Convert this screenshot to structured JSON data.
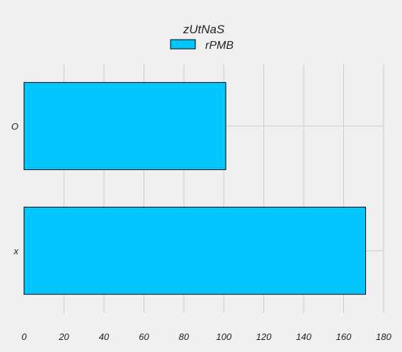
{
  "chart_data": {
    "type": "bar",
    "orientation": "horizontal",
    "categories": [
      "O",
      "x"
    ],
    "series": [
      {
        "name": "rPMB",
        "values": [
          101,
          171
        ],
        "color": "#00c5ff"
      }
    ],
    "legend": {
      "title": "zUtNaS",
      "placement": "top-center"
    },
    "xlim": [
      0,
      180
    ],
    "xticks": [
      0,
      20,
      40,
      60,
      80,
      100,
      120,
      140,
      160,
      180
    ],
    "grid": true,
    "background": "#f0f0f0",
    "grid_color": "#cbcbcb",
    "edge_color": "#000000"
  }
}
